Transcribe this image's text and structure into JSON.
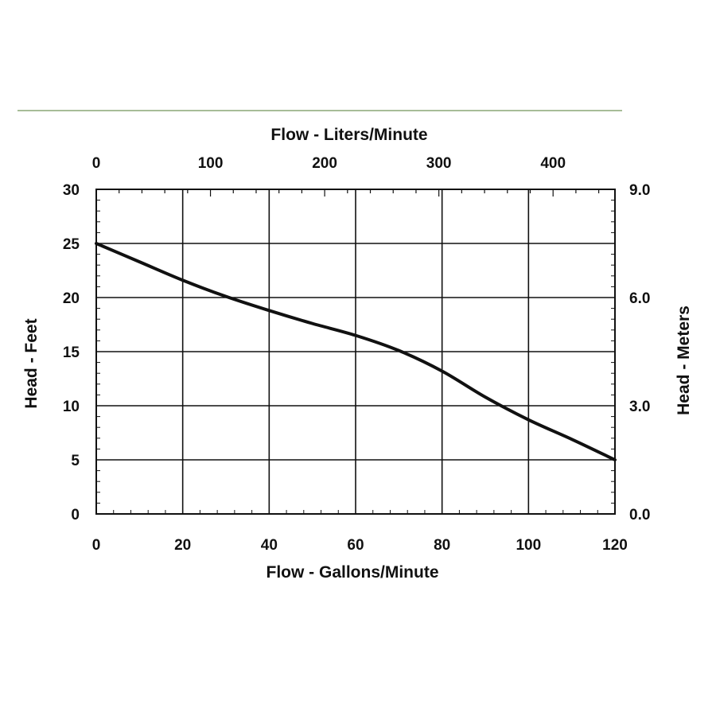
{
  "chart_data": {
    "type": "line",
    "xlabel": "Flow - Gallons/Minute",
    "x2label": "Flow - Liters/Minute",
    "ylabel": "Head - Feet",
    "y2label": "Head - Meters",
    "xlim": [
      0,
      120
    ],
    "ylim": [
      0,
      30
    ],
    "x2lim": [
      0,
      454.2
    ],
    "y2lim": [
      0.0,
      9.0
    ],
    "x_ticks": [
      "0",
      "20",
      "40",
      "60",
      "80",
      "100",
      "120"
    ],
    "y_ticks": [
      "0",
      "5",
      "10",
      "15",
      "20",
      "25",
      "30"
    ],
    "x2_ticks": [
      "0",
      "100",
      "200",
      "300",
      "400"
    ],
    "y2_ticks": [
      "0.0",
      "3.0",
      "6.0",
      "9.0"
    ],
    "grid": true,
    "line_color": "#111111",
    "rule_color": "#8aa677",
    "series": [
      {
        "x": [
          0,
          10,
          20,
          30,
          40,
          50,
          60,
          70,
          80,
          90,
          100,
          110,
          120
        ],
        "y": [
          25,
          23.3,
          21.6,
          20.1,
          18.8,
          17.6,
          16.5,
          15.1,
          13.2,
          10.8,
          8.7,
          6.9,
          5.0
        ]
      }
    ]
  }
}
